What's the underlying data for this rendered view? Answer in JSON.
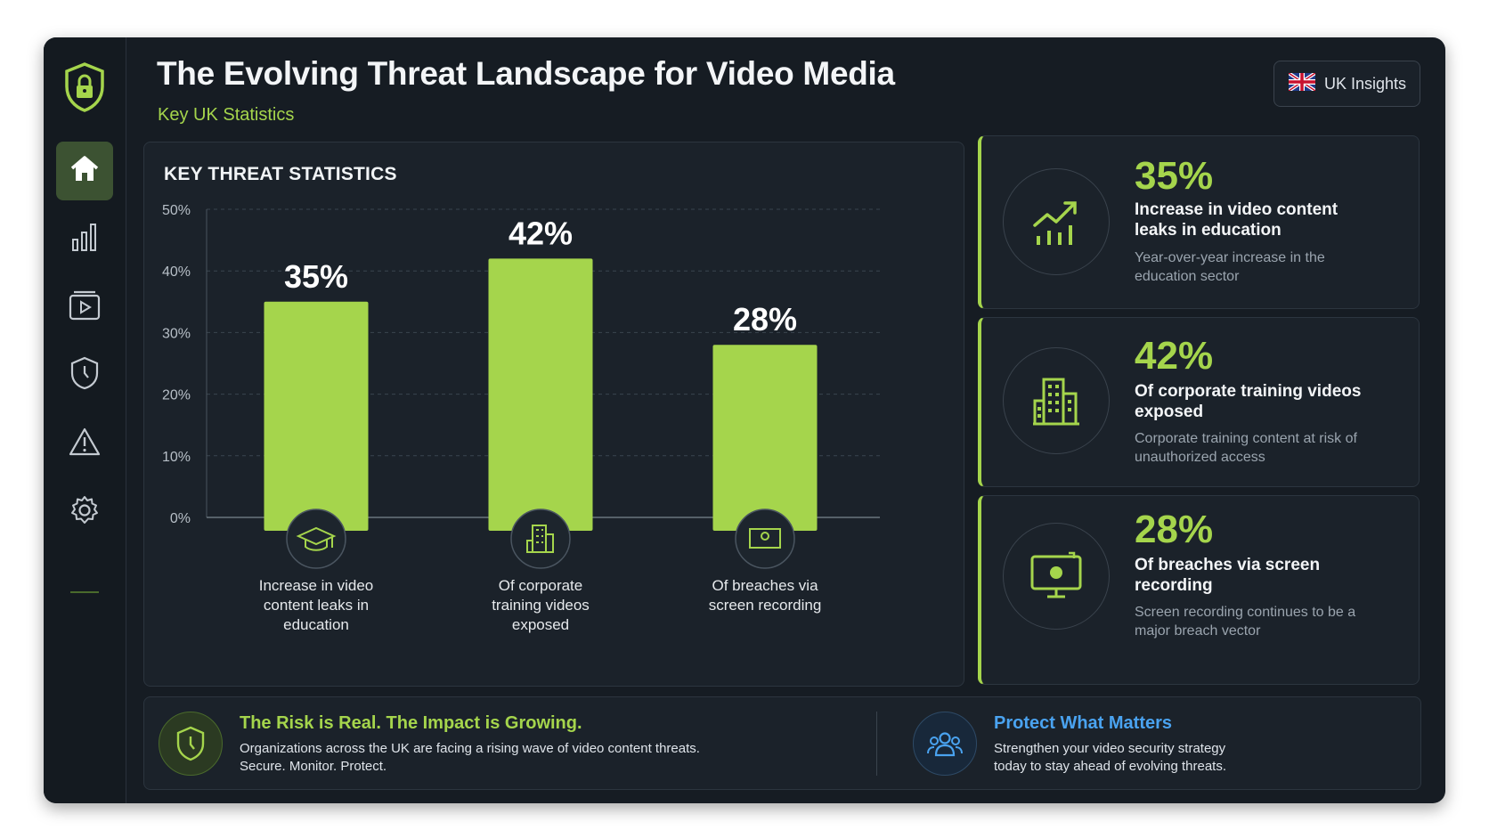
{
  "header": {
    "title": "The Evolving Threat Landscape for Video Media",
    "subtitle": "Key UK Statistics",
    "badge_label": "UK Insights"
  },
  "sidebar": {
    "items": [
      {
        "icon": "home-icon",
        "active": true
      },
      {
        "icon": "bar-chart-icon",
        "active": false
      },
      {
        "icon": "video-icon",
        "active": false
      },
      {
        "icon": "shield-icon",
        "active": false
      },
      {
        "icon": "warning-icon",
        "active": false
      },
      {
        "icon": "gear-icon",
        "active": false
      }
    ]
  },
  "chart_panel": {
    "title": "KEY THREAT STATISTICS"
  },
  "chart_data": {
    "type": "bar",
    "title": "KEY THREAT STATISTICS",
    "categories": [
      "Increase in video content leaks in education",
      "Of corporate training videos exposed",
      "Of breaches via screen recording"
    ],
    "values": [
      35,
      42,
      28
    ],
    "value_labels": [
      "35%",
      "42%",
      "28%"
    ],
    "category_icons": [
      "graduation-cap-icon",
      "building-icon",
      "screen-record-icon"
    ],
    "yticks": [
      "0%",
      "10%",
      "20%",
      "30%",
      "40%",
      "50%"
    ],
    "ylim": [
      0,
      50
    ],
    "grid": true,
    "bar_color": "#a5d54c"
  },
  "stats": [
    {
      "pct": "35%",
      "heading": "Increase in video content leaks in education",
      "desc": "Year-over-year increase in the education sector",
      "icon": "trend-chart-icon"
    },
    {
      "pct": "42%",
      "heading": "Of corporate training videos exposed",
      "desc": "Corporate training content at risk of unauthorized access",
      "icon": "building-icon"
    },
    {
      "pct": "28%",
      "heading": "Of breaches via screen recording",
      "desc": "Screen recording continues to be a major breach vector",
      "icon": "screen-record-icon"
    }
  ],
  "bottom": {
    "left": {
      "title": "The Risk is Real. The Impact is Growing.",
      "line1": "Organizations across the UK are facing a rising wave of video content threats.",
      "line2": "Secure. Monitor. Protect."
    },
    "right": {
      "title": "Protect What Matters",
      "line1": "Strengthen your video security strategy",
      "line2": "today to stay ahead of evolving threats."
    }
  },
  "colors": {
    "accent": "#a5d54c",
    "accent_blue": "#4aa3f0",
    "background": "#161c23",
    "panel": "#1b222a"
  }
}
